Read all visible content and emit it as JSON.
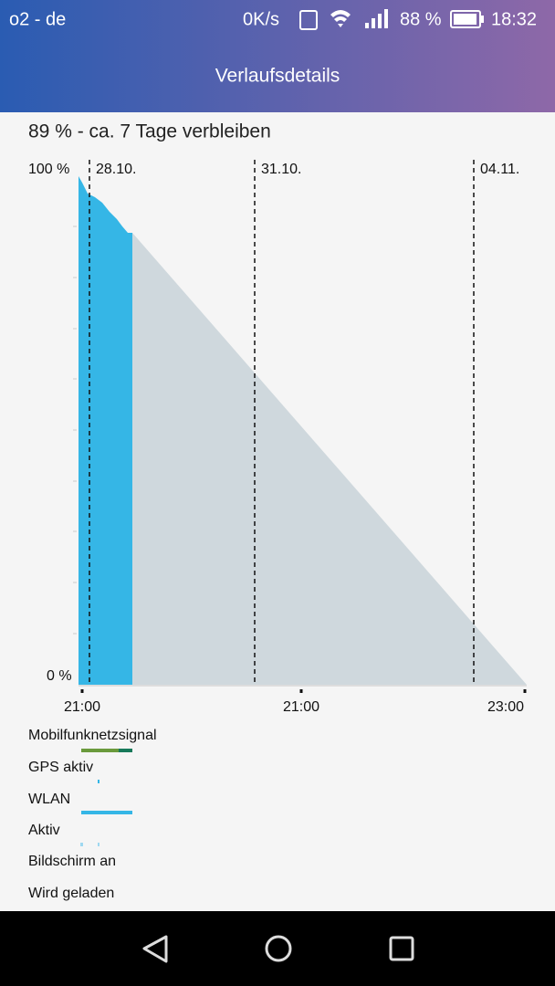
{
  "status_bar": {
    "carrier": "o2 - de",
    "speed": "0K/s",
    "battery": "88 %",
    "time": "18:32"
  },
  "header": {
    "title": "Verlaufsdetails"
  },
  "summary": "89 % - ca. 7 Tage verbleiben",
  "chart": {
    "y_max_label": "100 %",
    "y_min_label": "0 %",
    "date_labels": [
      "28.10.",
      "31.10.",
      "04.11."
    ],
    "time_labels": [
      "21:00",
      "21:00",
      "23:00"
    ]
  },
  "legend": [
    "Mobilfunknetzsignal",
    "GPS aktiv",
    "WLAN",
    "Aktiv",
    "Bildschirm an",
    "Wird geladen"
  ]
}
